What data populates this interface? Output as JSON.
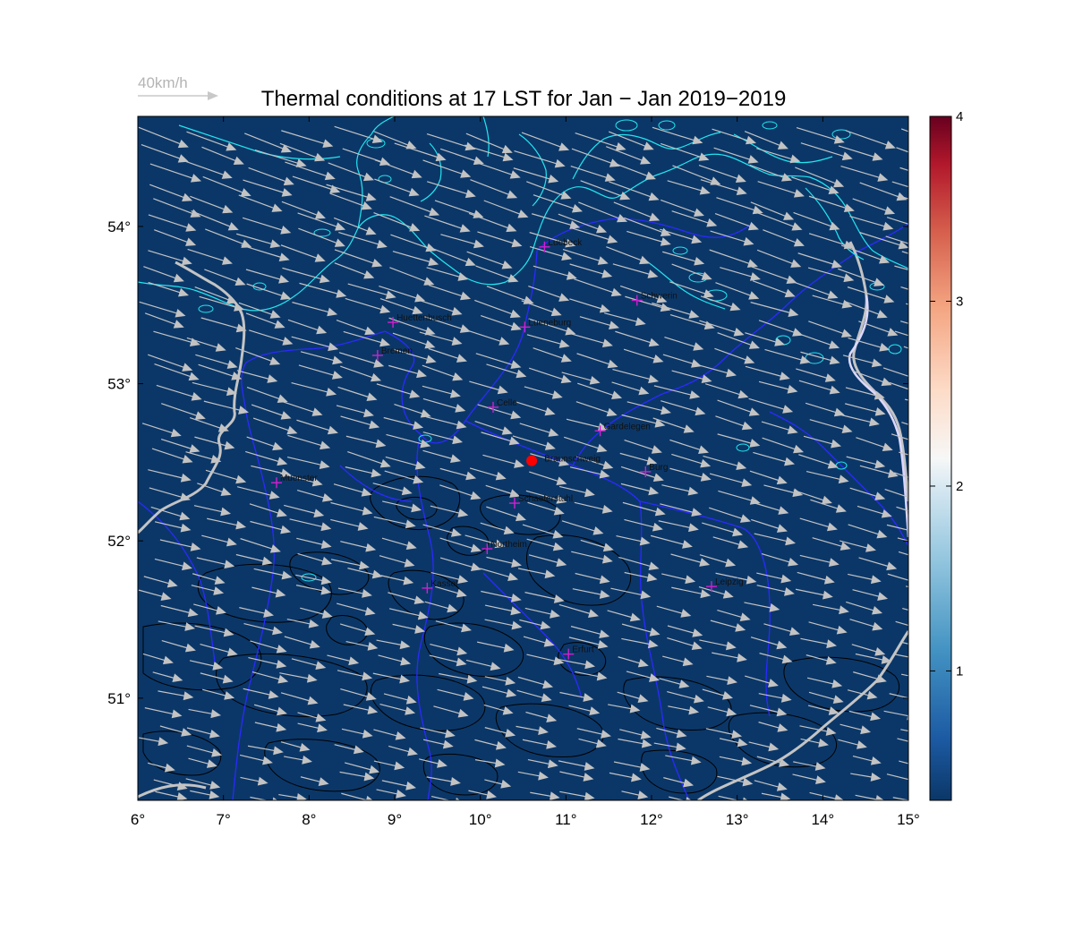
{
  "title": "Thermal conditions at 17 LST for Jan − Jan  2019−2019",
  "wind_reference": {
    "label": "40km/h",
    "speed_kmh": 40
  },
  "colors": {
    "background": "#0b3768",
    "coast": "#22e6f0",
    "rivers": "#2a2aff",
    "borders": "#c8c8c8",
    "contours": "#000000",
    "wind_arrows": "#c3c3c3",
    "city_marker": "#d020d0",
    "site_marker": "#ff0000"
  },
  "map": {
    "lon_range": [
      6,
      15
    ],
    "lat_range": [
      50.35,
      54.7
    ],
    "lon_ticks": [
      "6°",
      "7°",
      "8°",
      "9°",
      "10°",
      "11°",
      "12°",
      "13°",
      "14°",
      "15°"
    ],
    "lat_ticks": [
      "51°",
      "52°",
      "53°",
      "54°"
    ],
    "cities": [
      {
        "name": "Luebeck",
        "lon": 10.75,
        "lat": 53.87
      },
      {
        "name": "Schwerin",
        "lon": 11.83,
        "lat": 53.53
      },
      {
        "name": "Huettenbusch",
        "lon": 8.98,
        "lat": 53.39
      },
      {
        "name": "Lueneburg",
        "lon": 10.52,
        "lat": 53.36
      },
      {
        "name": "Bremen",
        "lon": 8.8,
        "lat": 53.18
      },
      {
        "name": "Celle",
        "lon": 10.15,
        "lat": 52.85
      },
      {
        "name": "Gardelegen",
        "lon": 11.4,
        "lat": 52.7
      },
      {
        "name": "Burg",
        "lon": 11.93,
        "lat": 52.44
      },
      {
        "name": "Muenster",
        "lon": 7.62,
        "lat": 52.37
      },
      {
        "name": "Schaeferstuhl",
        "lon": 10.4,
        "lat": 52.24
      },
      {
        "name": "Northeim",
        "lon": 10.08,
        "lat": 51.95
      },
      {
        "name": "Kassel",
        "lon": 9.38,
        "lat": 51.7
      },
      {
        "name": "Leipzig",
        "lon": 12.7,
        "lat": 51.71
      },
      {
        "name": "Erfurt",
        "lon": 11.03,
        "lat": 51.28
      }
    ],
    "site": {
      "name": "Braunschweig",
      "lon": 10.6,
      "lat": 52.51
    }
  },
  "colorbar": {
    "min": 0.3,
    "max": 4,
    "ticks": [
      "1",
      "2",
      "3",
      "4"
    ],
    "tick_values": [
      1,
      2,
      3,
      4
    ],
    "field_value": 0.35
  }
}
